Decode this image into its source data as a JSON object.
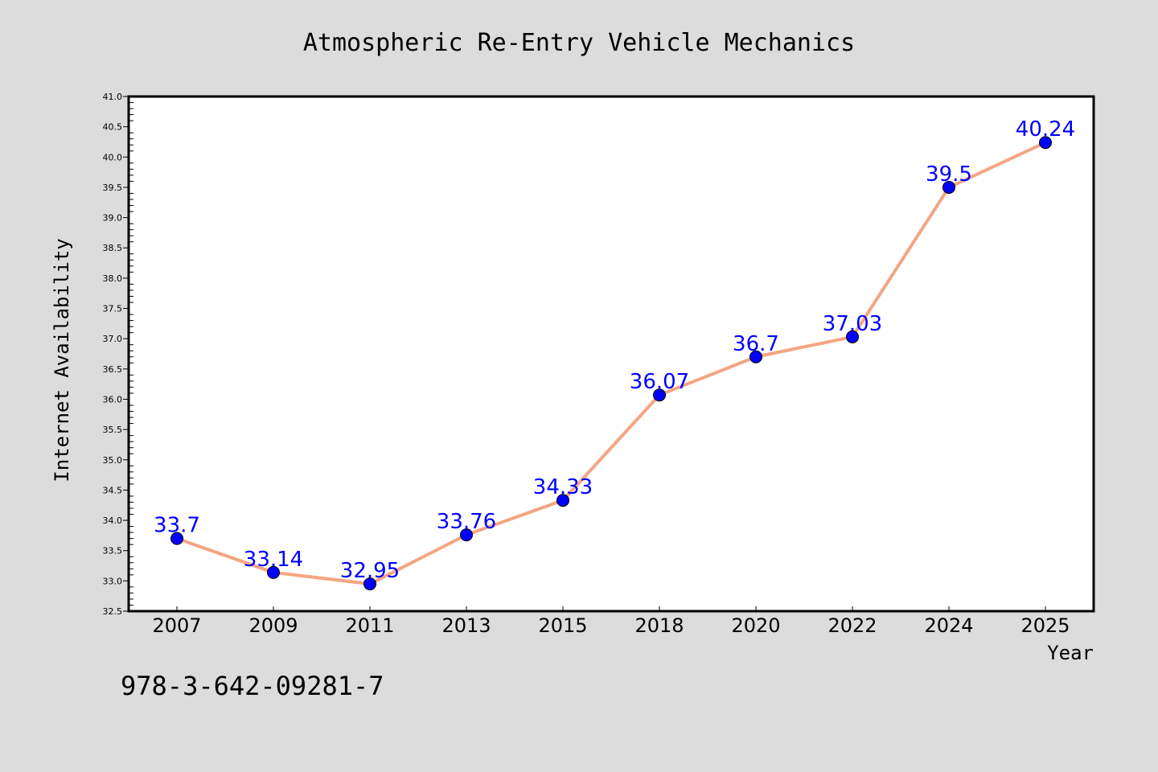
{
  "chart_data": {
    "type": "line",
    "title": "Atmospheric Re-Entry Vehicle Mechanics",
    "xlabel": "Year",
    "ylabel": "Internet Availability",
    "categories": [
      "2007",
      "2009",
      "2011",
      "2013",
      "2015",
      "2018",
      "2020",
      "2022",
      "2024",
      "2025"
    ],
    "series": [
      {
        "values": [
          33.7,
          33.14,
          32.95,
          33.76,
          34.33,
          36.07,
          36.7,
          37.03,
          39.5,
          40.24
        ],
        "data_labels": [
          "33.7",
          "33.14",
          "32.95",
          "33.76",
          "34.33",
          "36.07",
          "36.7",
          "37.03",
          "39.5",
          "40.24"
        ],
        "line_color": "#f4a582",
        "marker_color": "#0000ff"
      }
    ],
    "ylim": [
      32.5,
      41.0
    ],
    "y_ticks": [
      "32.5",
      "33.0",
      "33.5",
      "34.0",
      "34.5",
      "35.0",
      "35.5",
      "36.0",
      "36.5",
      "37.0",
      "37.5",
      "38.0",
      "38.5",
      "39.0",
      "39.5",
      "40.0",
      "40.5",
      "41.0"
    ],
    "grid": false,
    "label_color": "#0000ff"
  },
  "footer_text": "978-3-642-09281-7"
}
